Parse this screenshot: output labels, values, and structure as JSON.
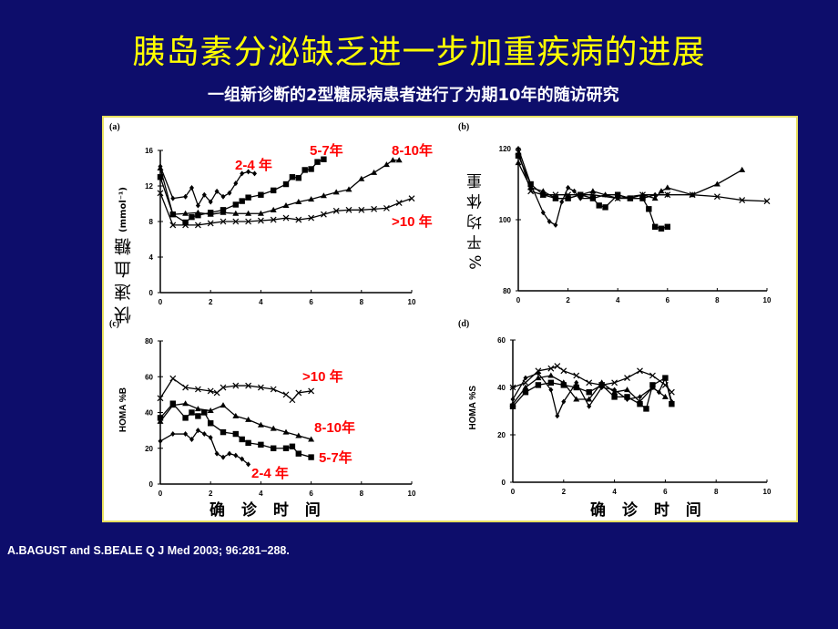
{
  "title": "胰岛素分泌缺乏进一步加重疾病的进展",
  "subtitle": "一组新诊断的2型糖尿病患者进行了为期10年的随访研究",
  "citation": "A.BAGUST and S.BEALE  Q J Med 2003; 96:281–288.",
  "colors": {
    "background": "#0d0d6b",
    "title": "#ffff00",
    "annotation": "#ff0000",
    "series": "#000000"
  },
  "chart_data": [
    {
      "panel": "(a)",
      "type": "line",
      "ylabel": "快 速 血 糖",
      "ylabel_unit": "(mmol⁻¹)",
      "xlim": [
        0,
        10
      ],
      "ylim": [
        0,
        16
      ],
      "xticks": [
        "0",
        "2",
        "4",
        "6",
        "8",
        "10"
      ],
      "yticks": [
        "0",
        "4",
        "8",
        "12",
        "16"
      ],
      "series": [
        {
          "name": "2-4 年",
          "marker": "diamond",
          "points": [
            [
              0,
              14.2
            ],
            [
              0.5,
              10.6
            ],
            [
              1,
              10.8
            ],
            [
              1.25,
              11.8
            ],
            [
              1.5,
              9.8
            ],
            [
              1.75,
              11
            ],
            [
              2,
              10.2
            ],
            [
              2.25,
              11.4
            ],
            [
              2.5,
              10.8
            ],
            [
              2.75,
              11.2
            ],
            [
              3,
              12.3
            ],
            [
              3.25,
              13.4
            ],
            [
              3.5,
              13.6
            ],
            [
              3.75,
              13.4
            ]
          ]
        },
        {
          "name": "5-7年",
          "marker": "square",
          "points": [
            [
              0,
              13
            ],
            [
              0.5,
              8.8
            ],
            [
              1,
              7.9
            ],
            [
              1.25,
              8.5
            ],
            [
              1.5,
              8.7
            ],
            [
              2,
              9
            ],
            [
              2.5,
              9.3
            ],
            [
              3,
              9.9
            ],
            [
              3.25,
              10.3
            ],
            [
              3.5,
              10.7
            ],
            [
              4,
              11
            ],
            [
              4.5,
              11.5
            ],
            [
              5,
              12.2
            ],
            [
              5.25,
              13
            ],
            [
              5.5,
              12.9
            ],
            [
              5.75,
              13.8
            ],
            [
              6,
              13.9
            ],
            [
              6.25,
              14.7
            ],
            [
              6.5,
              15
            ]
          ]
        },
        {
          "name": "8-10年",
          "marker": "triangle",
          "points": [
            [
              0,
              14
            ],
            [
              0.5,
              8.8
            ],
            [
              1,
              8.9
            ],
            [
              1.5,
              9
            ],
            [
              2,
              8.8
            ],
            [
              2.5,
              9
            ],
            [
              3,
              8.9
            ],
            [
              3.5,
              8.9
            ],
            [
              4,
              8.9
            ],
            [
              4.5,
              9.3
            ],
            [
              5,
              9.8
            ],
            [
              5.5,
              10.2
            ],
            [
              6,
              10.5
            ],
            [
              6.5,
              10.9
            ],
            [
              7,
              11.3
            ],
            [
              7.5,
              11.6
            ],
            [
              8,
              12.8
            ],
            [
              8.5,
              13.5
            ],
            [
              9,
              14.4
            ],
            [
              9.25,
              14.9
            ],
            [
              9.5,
              14.9
            ]
          ]
        },
        {
          "name": ">10 年",
          "marker": "cross",
          "points": [
            [
              0,
              11.2
            ],
            [
              0.5,
              7.6
            ],
            [
              1,
              7.6
            ],
            [
              1.5,
              7.6
            ],
            [
              2,
              7.8
            ],
            [
              2.5,
              8
            ],
            [
              3,
              8
            ],
            [
              3.5,
              8
            ],
            [
              4,
              8.1
            ],
            [
              4.5,
              8.2
            ],
            [
              5,
              8.4
            ],
            [
              5.5,
              8.2
            ],
            [
              6,
              8.4
            ],
            [
              6.5,
              8.8
            ],
            [
              7,
              9.2
            ],
            [
              7.5,
              9.3
            ],
            [
              8,
              9.3
            ],
            [
              8.5,
              9.4
            ],
            [
              9,
              9.5
            ],
            [
              9.5,
              10.1
            ],
            [
              10,
              10.6
            ]
          ]
        }
      ]
    },
    {
      "panel": "(b)",
      "type": "line",
      "ylabel": "% 平 均 体 重",
      "xlim": [
        0,
        10
      ],
      "ylim": [
        80,
        120
      ],
      "xticks": [
        "0",
        "2",
        "4",
        "6",
        "8",
        "10"
      ],
      "yticks": [
        "80",
        "100",
        "120"
      ],
      "series": [
        {
          "marker": "diamond",
          "points": [
            [
              0,
              120
            ],
            [
              0.5,
              110
            ],
            [
              1,
              102
            ],
            [
              1.25,
              99.5
            ],
            [
              1.5,
              98.5
            ],
            [
              1.75,
              105
            ],
            [
              2,
              109
            ],
            [
              2.25,
              108
            ],
            [
              2.5,
              106
            ],
            [
              3,
              106
            ],
            [
              3.5,
              107
            ],
            [
              4,
              106
            ],
            [
              4.5,
              106
            ],
            [
              5,
              106
            ],
            [
              5.5,
              107
            ],
            [
              6,
              107
            ]
          ]
        },
        {
          "marker": "square",
          "points": [
            [
              0,
              118
            ],
            [
              0.5,
              110
            ],
            [
              1,
              107
            ],
            [
              1.5,
              106
            ],
            [
              2,
              106
            ],
            [
              2.5,
              107
            ],
            [
              3,
              106
            ],
            [
              3.25,
              104
            ],
            [
              3.5,
              103.5
            ],
            [
              4,
              107
            ],
            [
              4.5,
              106
            ],
            [
              5,
              106
            ],
            [
              5.25,
              103
            ],
            [
              5.5,
              98
            ],
            [
              5.75,
              97.5
            ],
            [
              6,
              98
            ]
          ]
        },
        {
          "marker": "triangle",
          "points": [
            [
              0,
              116
            ],
            [
              0.5,
              109
            ],
            [
              1,
              108
            ],
            [
              1.5,
              106
            ],
            [
              2,
              106
            ],
            [
              2.5,
              107
            ],
            [
              3,
              108
            ],
            [
              3.5,
              107
            ],
            [
              4,
              107
            ],
            [
              4.5,
              106
            ],
            [
              5,
              107
            ],
            [
              5.5,
              106
            ],
            [
              5.75,
              108
            ],
            [
              6,
              109
            ],
            [
              7,
              107
            ],
            [
              8,
              110
            ],
            [
              9,
              114
            ]
          ]
        },
        {
          "marker": "cross",
          "points": [
            [
              0,
              119
            ],
            [
              0.5,
              108
            ],
            [
              1,
              107
            ],
            [
              1.5,
              107
            ],
            [
              2,
              107
            ],
            [
              3,
              107
            ],
            [
              4,
              106
            ],
            [
              5,
              107
            ],
            [
              6,
              107
            ],
            [
              7,
              107
            ],
            [
              8,
              106.5
            ],
            [
              9,
              105.5
            ],
            [
              10,
              105.2
            ]
          ]
        }
      ]
    },
    {
      "panel": "(c)",
      "type": "line",
      "ylabel": "HOMA %B",
      "xlabel": "确 诊 时 间",
      "xlim": [
        0,
        10
      ],
      "ylim": [
        0,
        80
      ],
      "xticks": [
        "0",
        "2",
        "4",
        "6",
        "8",
        "10"
      ],
      "yticks": [
        "0",
        "20",
        "40",
        "60",
        "80"
      ],
      "series": [
        {
          "name": ">10 年",
          "marker": "cross",
          "points": [
            [
              0,
              48
            ],
            [
              0.5,
              59
            ],
            [
              1,
              54
            ],
            [
              1.5,
              53
            ],
            [
              2,
              52
            ],
            [
              2.25,
              51
            ],
            [
              2.5,
              54
            ],
            [
              3,
              55
            ],
            [
              3.5,
              55
            ],
            [
              4,
              54
            ],
            [
              4.5,
              53
            ],
            [
              5,
              50
            ],
            [
              5.25,
              47
            ],
            [
              5.5,
              51
            ],
            [
              6,
              52
            ]
          ]
        },
        {
          "name": "8-10年",
          "marker": "triangle",
          "points": [
            [
              0,
              35
            ],
            [
              0.5,
              44
            ],
            [
              1,
              45
            ],
            [
              1.5,
              42
            ],
            [
              2,
              41
            ],
            [
              2.5,
              44
            ],
            [
              3,
              38
            ],
            [
              3.5,
              36
            ],
            [
              4,
              33
            ],
            [
              4.5,
              31
            ],
            [
              5,
              29
            ],
            [
              5.5,
              27
            ],
            [
              6,
              25
            ]
          ]
        },
        {
          "name": "5-7年",
          "marker": "square",
          "points": [
            [
              0,
              37
            ],
            [
              0.5,
              45
            ],
            [
              1,
              37
            ],
            [
              1.25,
              40
            ],
            [
              1.5,
              38
            ],
            [
              1.75,
              40
            ],
            [
              2,
              34
            ],
            [
              2.5,
              29
            ],
            [
              3,
              28
            ],
            [
              3.25,
              25
            ],
            [
              3.5,
              23
            ],
            [
              4,
              22
            ],
            [
              4.5,
              20
            ],
            [
              5,
              20
            ],
            [
              5.25,
              21
            ],
            [
              5.5,
              17
            ],
            [
              6,
              15
            ]
          ]
        },
        {
          "name": "2-4 年",
          "marker": "diamond",
          "points": [
            [
              0,
              24
            ],
            [
              0.5,
              28
            ],
            [
              1,
              28
            ],
            [
              1.25,
              25
            ],
            [
              1.5,
              30
            ],
            [
              1.75,
              28
            ],
            [
              2,
              26
            ],
            [
              2.25,
              17
            ],
            [
              2.5,
              15
            ],
            [
              2.75,
              17
            ],
            [
              3,
              16
            ],
            [
              3.25,
              14
            ],
            [
              3.5,
              11
            ]
          ]
        }
      ]
    },
    {
      "panel": "(d)",
      "type": "line",
      "ylabel": "HOMA %S",
      "xlabel": "确 诊 时 间",
      "xlim": [
        0,
        10
      ],
      "ylim": [
        0,
        60
      ],
      "xticks": [
        "0",
        "2",
        "4",
        "6",
        "8",
        "10"
      ],
      "yticks": [
        "0",
        "20",
        "40",
        "60"
      ],
      "series": [
        {
          "marker": "cross",
          "points": [
            [
              0,
              40
            ],
            [
              0.5,
              42
            ],
            [
              1,
              47
            ],
            [
              1.5,
              48
            ],
            [
              1.75,
              49
            ],
            [
              2,
              47
            ],
            [
              2.5,
              45
            ],
            [
              3,
              42
            ],
            [
              3.5,
              41
            ],
            [
              4,
              42
            ],
            [
              4.5,
              44
            ],
            [
              5,
              47
            ],
            [
              5.5,
              45
            ],
            [
              6,
              41
            ],
            [
              6.25,
              38
            ]
          ]
        },
        {
          "marker": "diamond",
          "points": [
            [
              0,
              35
            ],
            [
              0.5,
              44
            ],
            [
              1,
              46
            ],
            [
              1.5,
              39
            ],
            [
              1.75,
              28
            ],
            [
              2,
              34
            ],
            [
              2.5,
              42
            ],
            [
              3,
              32
            ],
            [
              3.5,
              40
            ],
            [
              4,
              39
            ],
            [
              4.5,
              35
            ],
            [
              5,
              36
            ],
            [
              5.5,
              40
            ],
            [
              5.75,
              38
            ],
            [
              6,
              44
            ],
            [
              6.25,
              34
            ]
          ]
        },
        {
          "marker": "square",
          "points": [
            [
              0,
              32
            ],
            [
              0.5,
              38
            ],
            [
              1,
              41
            ],
            [
              1.5,
              42
            ],
            [
              2,
              41
            ],
            [
              2.5,
              40
            ],
            [
              3,
              38
            ],
            [
              3.5,
              41
            ],
            [
              4,
              36
            ],
            [
              4.5,
              36
            ],
            [
              5,
              33
            ],
            [
              5.25,
              31
            ],
            [
              5.5,
              41
            ],
            [
              6,
              44
            ],
            [
              6.25,
              33
            ]
          ]
        },
        {
          "marker": "triangle",
          "points": [
            [
              0,
              33
            ],
            [
              0.5,
              40
            ],
            [
              1,
              44
            ],
            [
              1.5,
              45
            ],
            [
              2,
              42
            ],
            [
              2.5,
              35
            ],
            [
              3,
              35
            ],
            [
              3.5,
              42
            ],
            [
              4,
              38
            ],
            [
              4.5,
              39
            ],
            [
              5,
              34
            ],
            [
              5.5,
              40
            ],
            [
              6,
              36
            ]
          ]
        }
      ]
    }
  ]
}
